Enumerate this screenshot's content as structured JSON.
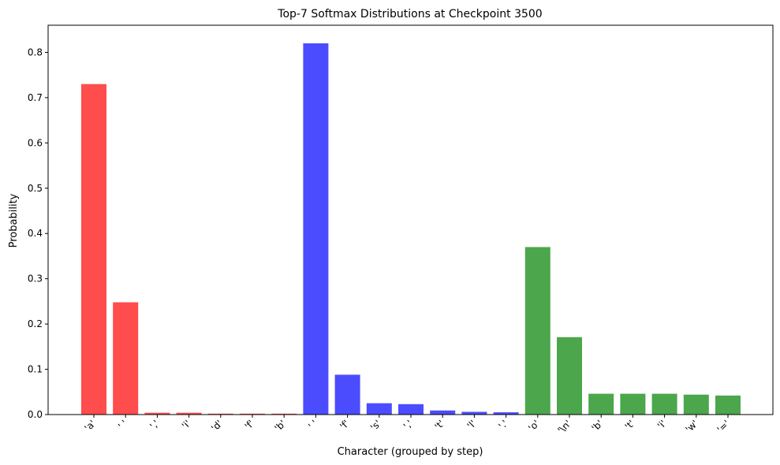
{
  "chart_data": {
    "type": "bar",
    "title": "Top-7 Softmax Distributions at Checkpoint 3500",
    "xlabel": "Character (grouped by step)",
    "ylabel": "Probability",
    "ylim": [
      0,
      0.86
    ],
    "yticks": [
      "0.0",
      "0.1",
      "0.2",
      "0.3",
      "0.4",
      "0.5",
      "0.6",
      "0.7",
      "0.8"
    ],
    "ytick_values": [
      0,
      0.1,
      0.2,
      0.3,
      0.4,
      0.5,
      0.6,
      0.7,
      0.8
    ],
    "grid": false,
    "categories": [
      "'a'",
      "' '",
      "','",
      "'i'",
      "'d'",
      "'f'",
      "'b'",
      "' '",
      "'f'",
      "'s'",
      "','",
      "'t'",
      "'l'",
      "'.'",
      "'o'",
      "'\\n'",
      "'b'",
      "'t'",
      "'i'",
      "'w'",
      "'='"
    ],
    "values": [
      0.73,
      0.248,
      0.004,
      0.004,
      0.002,
      0.002,
      0.002,
      0.82,
      0.088,
      0.025,
      0.023,
      0.009,
      0.006,
      0.005,
      0.37,
      0.171,
      0.046,
      0.046,
      0.046,
      0.044,
      0.042
    ],
    "bar_colors": [
      "#ff4c4c",
      "#ff4c4c",
      "#ff4c4c",
      "#ff4c4c",
      "#ff4c4c",
      "#ff4c4c",
      "#ff4c4c",
      "#4c4cff",
      "#4c4cff",
      "#4c4cff",
      "#4c4cff",
      "#4c4cff",
      "#4c4cff",
      "#4c4cff",
      "#4ca64c",
      "#4ca64c",
      "#4ca64c",
      "#4ca64c",
      "#4ca64c",
      "#4ca64c",
      "#4ca64c"
    ]
  }
}
